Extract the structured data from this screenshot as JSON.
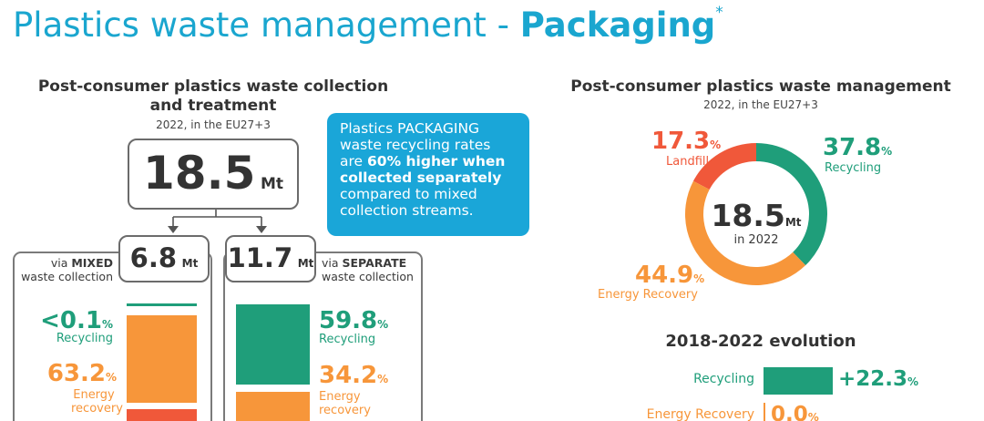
{
  "title": {
    "light": "Plastics waste management - ",
    "bold": "Packaging",
    "mark": "*"
  },
  "left": {
    "heading_line1": "Post-consumer plastics waste collection",
    "heading_line2": "and treatment",
    "subtitle": "2022, in the EU27+3",
    "total_value": "18.5",
    "total_unit": "Mt",
    "mixed": {
      "prefix": "via ",
      "strong": "MIXED",
      "line2": "waste collection",
      "value": "6.8",
      "unit": "Mt"
    },
    "separate": {
      "prefix": "via ",
      "strong": "SEPARATE",
      "line2": "waste collection",
      "value": "11.7",
      "unit": "Mt"
    }
  },
  "callout": {
    "t1": "Plastics PACKAGING",
    "t2": "waste recycling rates",
    "t3": "are ",
    "t4": "60% higher when",
    "t5": "collected separately",
    "t6": "compared to mixed",
    "t7": "collection streams."
  },
  "right": {
    "heading": "Post-consumer plastics waste management",
    "subtitle": "2022, in the EU27+3",
    "center_value": "18.5",
    "center_unit": "Mt",
    "center_sub": "in 2022",
    "evolution_title": "2018-2022 evolution"
  },
  "colors": {
    "recycling": "#1f9e7a",
    "energy": "#f7963a",
    "landfill": "#f0583a",
    "accent": "#1aa6cf"
  },
  "chart_data": [
    {
      "type": "bar",
      "series_label": "via MIXED waste collection",
      "categories": [
        "Recycling",
        "Energy recovery"
      ],
      "values": [
        0.1,
        63.2
      ],
      "value_labels": [
        "<0.1",
        "63.2"
      ],
      "unit": "%"
    },
    {
      "type": "bar",
      "series_label": "via SEPARATE waste collection",
      "categories": [
        "Recycling",
        "Energy recovery"
      ],
      "values": [
        59.8,
        34.2
      ],
      "value_labels": [
        "59.8",
        "34.2"
      ],
      "unit": "%"
    },
    {
      "type": "pie",
      "categories": [
        "Recycling",
        "Landfill",
        "Energy Recovery"
      ],
      "values": [
        37.8,
        17.3,
        44.9
      ],
      "value_labels": [
        "37.8",
        "17.3",
        "44.9"
      ],
      "label_texts": [
        "Recycling",
        "Landfill",
        "Energy Recovery"
      ],
      "unit": "%"
    },
    {
      "type": "bar",
      "orientation": "horizontal",
      "categories": [
        "Recycling",
        "Energy Recovery"
      ],
      "values": [
        22.3,
        0.0
      ],
      "value_labels": [
        "+22.3",
        "0.0"
      ],
      "unit": "%"
    }
  ]
}
